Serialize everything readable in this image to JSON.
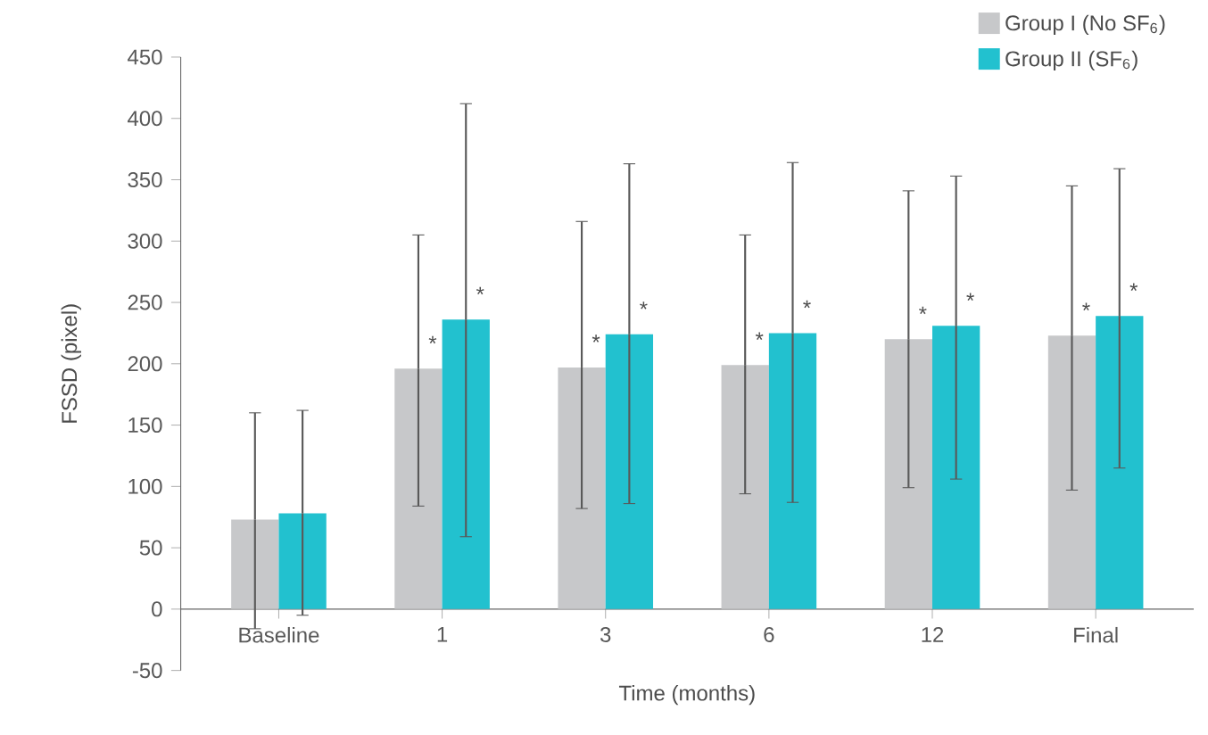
{
  "chart_data": {
    "type": "bar",
    "xlabel": "Time (months)",
    "ylabel": "FSSD (pixel)",
    "categories": [
      "Baseline",
      "1",
      "3",
      "6",
      "12",
      "Final"
    ],
    "series": [
      {
        "name": "Group I (No SF$_{6}$)",
        "color": "#c7c8ca",
        "values": [
          73,
          196,
          197,
          199,
          220,
          223
        ],
        "errors": [
          [
            -16,
            160
          ],
          [
            84,
            305
          ],
          [
            82,
            316
          ],
          [
            94,
            305
          ],
          [
            99,
            341
          ],
          [
            97,
            345
          ]
        ],
        "value_labels": [
          null,
          "*",
          "*",
          "*",
          "*",
          "*"
        ]
      },
      {
        "name": "Group II (SF$_{6}$)",
        "color": "#22c1cf",
        "values": [
          78,
          236,
          224,
          225,
          231,
          239
        ],
        "errors": [
          [
            -5,
            162
          ],
          [
            59,
            412
          ],
          [
            86,
            363
          ],
          [
            87,
            364
          ],
          [
            106,
            353
          ],
          [
            115,
            359
          ]
        ],
        "value_labels": [
          null,
          "*",
          "*",
          "*",
          "*",
          "*"
        ]
      }
    ],
    "ylim": [
      -50,
      450
    ],
    "yticks": [
      -50,
      0,
      50,
      100,
      150,
      200,
      250,
      300,
      350,
      400,
      450
    ],
    "legend": "top right",
    "grid": false
  }
}
